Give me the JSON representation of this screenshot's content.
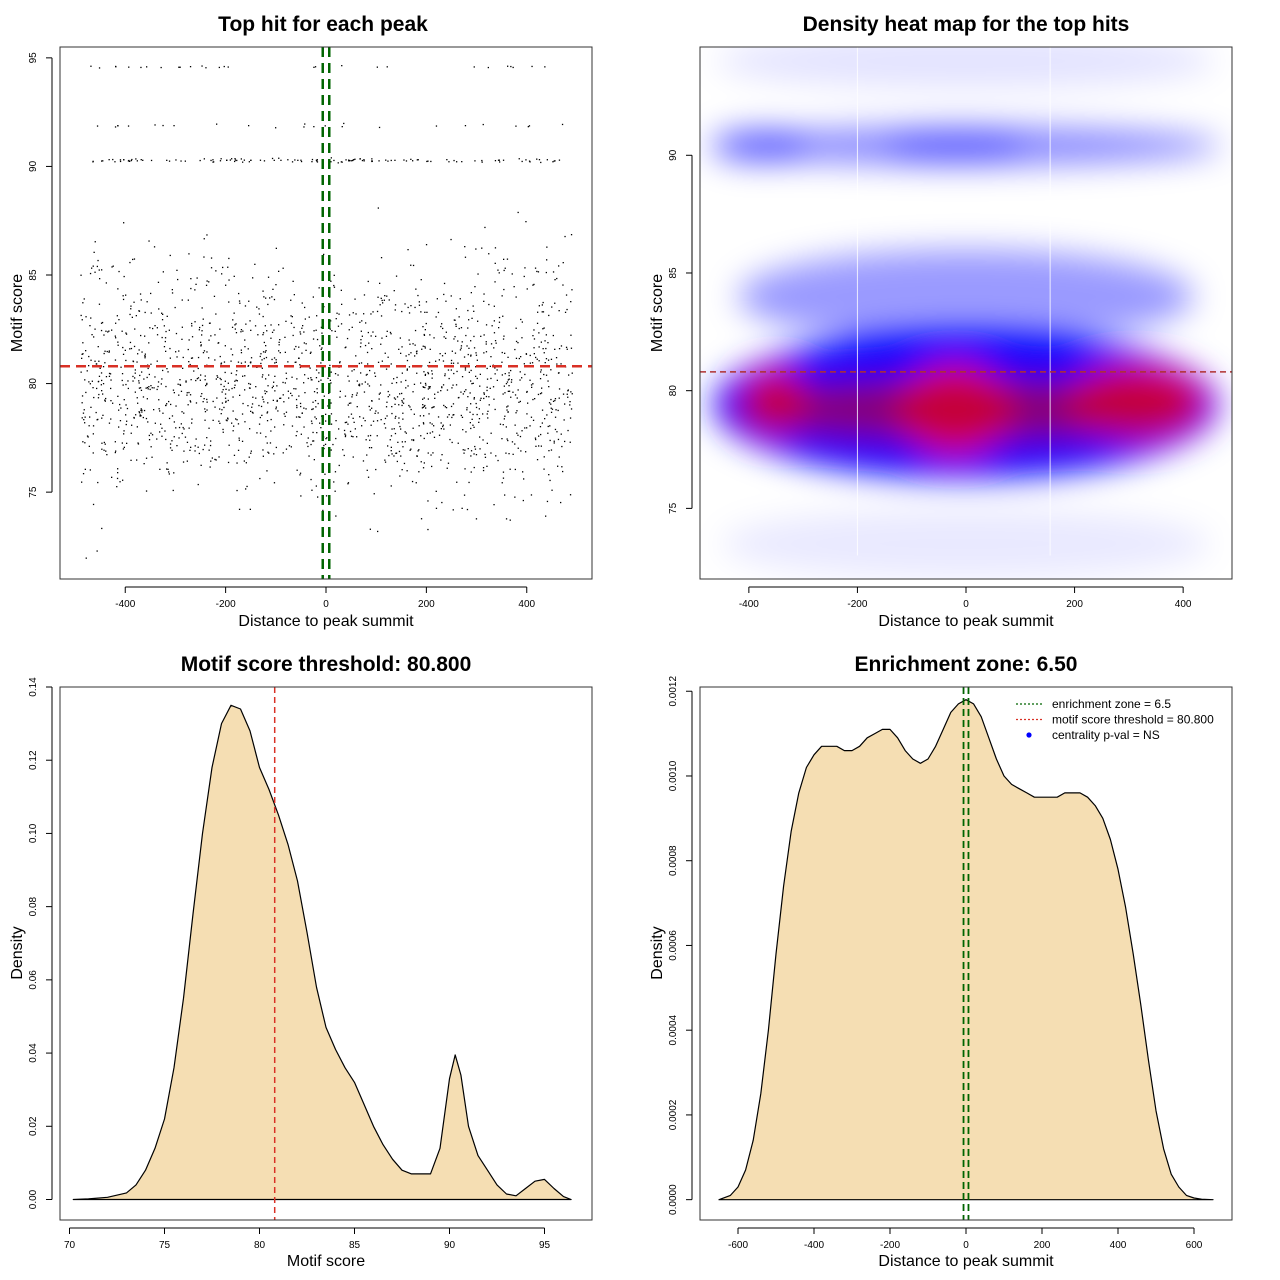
{
  "chart_data": [
    {
      "id": "scatter",
      "type": "scatter",
      "title": "Top hit for each peak",
      "xlabel": "Distance to peak summit",
      "ylabel": "Motif score",
      "xlim": [
        -530,
        530
      ],
      "ylim": [
        71,
        95.5
      ],
      "xticks": [
        -400,
        -200,
        0,
        200,
        400
      ],
      "yticks": [
        75,
        80,
        85,
        90,
        95
      ],
      "threshold_y": 80.8,
      "zone_x": [
        -6.5,
        6.5
      ],
      "point_color": "#000000",
      "threshold_color": "#d93025",
      "zone_color": "#006400",
      "clusters": [
        {
          "y_mean": 79.3,
          "y_sd": 2.1,
          "x_range": [
            -490,
            490
          ],
          "count": 1500
        },
        {
          "y_mean": 83.5,
          "y_sd": 1.7,
          "x_range": [
            -490,
            490
          ],
          "count": 320
        },
        {
          "y_mean": 90.3,
          "y_sd": 0.05,
          "x_range": [
            -470,
            470
          ],
          "count": 130
        },
        {
          "y_mean": 91.9,
          "y_sd": 0.05,
          "x_range": [
            -480,
            480
          ],
          "count": 25
        },
        {
          "y_mean": 94.6,
          "y_sd": 0.03,
          "x_range": [
            -480,
            460
          ],
          "count": 28
        }
      ]
    },
    {
      "id": "heatmap",
      "type": "heatmap",
      "title": "Density heat map for the top hits",
      "xlabel": "Distance to peak summit",
      "ylabel": "Motif score",
      "xlim": [
        -490,
        490
      ],
      "ylim": [
        72,
        94.6
      ],
      "xticks": [
        -400,
        -200,
        0,
        200,
        400
      ],
      "yticks": [
        75,
        80,
        85,
        90
      ],
      "threshold_y": 80.8,
      "zone_x": [
        -6.5,
        6.5
      ],
      "colors": {
        "low": "#ffffff",
        "mid": "#0000ff",
        "high": "#ff0000"
      },
      "density_bands": [
        {
          "y_center": 79.4,
          "y_halfwidth": 3.1,
          "x_center": 0,
          "x_halfwidth": 465,
          "level": 0.62
        },
        {
          "y_center": 79.2,
          "y_halfwidth": 1.8,
          "x_center": -20,
          "x_halfwidth": 110,
          "level": 0.4
        },
        {
          "y_center": 79.5,
          "y_halfwidth": 1.3,
          "x_center": -350,
          "x_halfwidth": 60,
          "level": 0.18
        },
        {
          "y_center": 79.5,
          "y_halfwidth": 1.5,
          "x_center": 310,
          "x_halfwidth": 130,
          "level": 0.12
        },
        {
          "y_center": 84.0,
          "y_halfwidth": 2.0,
          "x_center": 0,
          "x_halfwidth": 420,
          "level": 0.18
        },
        {
          "y_center": 90.4,
          "y_halfwidth": 0.8,
          "x_center": 0,
          "x_halfwidth": 470,
          "level": 0.22
        },
        {
          "y_center": 90.4,
          "y_halfwidth": 0.7,
          "x_center": -380,
          "x_halfwidth": 90,
          "level": 0.2
        },
        {
          "y_center": 90.4,
          "y_halfwidth": 0.7,
          "x_center": -20,
          "x_halfwidth": 130,
          "level": 0.14
        },
        {
          "y_center": 94.0,
          "y_halfwidth": 1.2,
          "x_center": 0,
          "x_halfwidth": 460,
          "level": 0.05
        },
        {
          "y_center": 73.5,
          "y_halfwidth": 1.5,
          "x_center": 0,
          "x_halfwidth": 450,
          "level": 0.04
        }
      ]
    },
    {
      "id": "density_score",
      "type": "area",
      "title": "Motif score threshold: 80.800",
      "xlabel": "Motif score",
      "ylabel": "Density",
      "xlim": [
        69.5,
        97.5
      ],
      "ylim": [
        -0.0056,
        0.14
      ],
      "xticks": [
        70,
        75,
        80,
        85,
        90,
        95
      ],
      "yticks": [
        0.0,
        0.02,
        0.04,
        0.06,
        0.08,
        0.1,
        0.12,
        0.14
      ],
      "ytick_labels": [
        "0.00",
        "0.02",
        "0.04",
        "0.06",
        "0.08",
        "0.10",
        "0.12",
        "0.14"
      ],
      "threshold_x": 80.8,
      "fill": "#f5deb3",
      "threshold_color": "#d93025",
      "x": [
        70.2,
        71,
        72,
        73,
        73.5,
        74,
        74.5,
        75,
        75.5,
        76,
        76.5,
        77,
        77.5,
        78,
        78.5,
        79,
        79.5,
        80,
        80.5,
        81,
        81.5,
        82,
        82.5,
        83,
        83.5,
        84,
        84.5,
        85,
        85.5,
        86,
        86.5,
        87,
        87.5,
        88,
        88.5,
        89,
        89.5,
        90,
        90.3,
        90.6,
        91,
        91.5,
        92,
        92.5,
        93,
        93.5,
        94,
        94.5,
        95,
        95.5,
        96,
        96.4
      ],
      "y": [
        0.0,
        0.0002,
        0.0006,
        0.0018,
        0.004,
        0.008,
        0.014,
        0.022,
        0.036,
        0.055,
        0.078,
        0.1,
        0.118,
        0.13,
        0.135,
        0.134,
        0.128,
        0.118,
        0.112,
        0.105,
        0.097,
        0.087,
        0.073,
        0.058,
        0.047,
        0.041,
        0.036,
        0.032,
        0.026,
        0.02,
        0.015,
        0.011,
        0.008,
        0.007,
        0.007,
        0.007,
        0.014,
        0.033,
        0.0395,
        0.034,
        0.02,
        0.012,
        0.008,
        0.004,
        0.0015,
        0.001,
        0.003,
        0.005,
        0.0055,
        0.003,
        0.0008,
        0.0
      ]
    },
    {
      "id": "density_distance",
      "type": "area",
      "title": "Enrichment zone: 6.50",
      "xlabel": "Distance to peak summit",
      "ylabel": "Density",
      "xlim": [
        -700,
        700
      ],
      "ylim": [
        -4.8e-05,
        0.00121
      ],
      "xticks": [
        -600,
        -400,
        -200,
        0,
        200,
        400,
        600
      ],
      "yticks": [
        0.0,
        0.0002,
        0.0004,
        0.0006,
        0.0008,
        0.001,
        0.0012
      ],
      "ytick_labels": [
        "0.0000",
        "0.0002",
        "0.0004",
        "0.0006",
        "0.0008",
        "0.0010",
        "0.0012"
      ],
      "zone_x": [
        -6.5,
        6.5
      ],
      "fill": "#f5deb3",
      "zone_color": "#006400",
      "x": [
        -650,
        -620,
        -600,
        -580,
        -560,
        -540,
        -520,
        -500,
        -480,
        -460,
        -440,
        -420,
        -400,
        -380,
        -360,
        -340,
        -320,
        -300,
        -280,
        -260,
        -240,
        -220,
        -200,
        -180,
        -160,
        -140,
        -120,
        -100,
        -80,
        -60,
        -40,
        -20,
        0,
        20,
        40,
        60,
        80,
        100,
        120,
        140,
        160,
        180,
        200,
        220,
        240,
        260,
        280,
        300,
        320,
        340,
        360,
        380,
        400,
        420,
        440,
        460,
        480,
        500,
        520,
        540,
        560,
        580,
        600,
        620,
        650
      ],
      "y": [
        0.0,
        1e-05,
        3e-05,
        7e-05,
        0.00014,
        0.00025,
        0.0004,
        0.00058,
        0.00074,
        0.00087,
        0.00096,
        0.00102,
        0.00105,
        0.00107,
        0.00107,
        0.00107,
        0.00106,
        0.00106,
        0.00107,
        0.00109,
        0.0011,
        0.00111,
        0.00111,
        0.00109,
        0.00106,
        0.00104,
        0.00103,
        0.00104,
        0.00107,
        0.00111,
        0.00115,
        0.00117,
        0.00118,
        0.00117,
        0.00114,
        0.00109,
        0.00104,
        0.001,
        0.00098,
        0.00097,
        0.00096,
        0.00095,
        0.00095,
        0.00095,
        0.00095,
        0.00096,
        0.00096,
        0.00096,
        0.00095,
        0.00093,
        0.0009,
        0.00085,
        0.00078,
        0.00069,
        0.00058,
        0.00046,
        0.00033,
        0.00021,
        0.00012,
        6e-05,
        3e-05,
        1e-05,
        4e-06,
        1e-06,
        0.0
      ],
      "legend": {
        "placement": "top-right",
        "entries": [
          {
            "label": "enrichment zone = 6.5",
            "kind": "dotted-line",
            "color": "#006400"
          },
          {
            "label": "motif score threshold = 80.800",
            "kind": "dotted-line",
            "color": "#d93025"
          },
          {
            "label": "centrality p-val = NS",
            "kind": "point",
            "color": "#0000ff"
          }
        ]
      }
    }
  ]
}
